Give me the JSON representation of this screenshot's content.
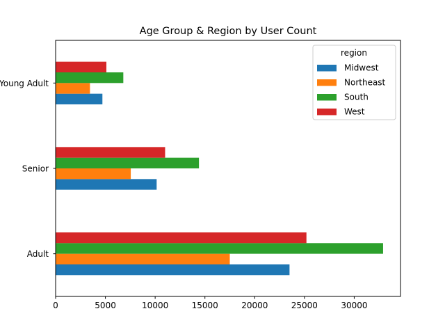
{
  "chart_data": {
    "type": "bar",
    "orientation": "horizontal",
    "title": "Age Group & Region by User Count",
    "xlabel": "",
    "ylabel": "",
    "xlim": [
      0,
      34650
    ],
    "xticks": [
      0,
      5000,
      10000,
      15000,
      20000,
      25000,
      30000
    ],
    "xtick_labels": [
      "0",
      "5000",
      "10000",
      "15000",
      "20000",
      "25000",
      "30000"
    ],
    "categories": [
      "Adult",
      "Senior",
      "Young Adult"
    ],
    "grid": false,
    "legend": {
      "title": "region",
      "placement": "top-right"
    },
    "series": [
      {
        "name": "Midwest",
        "color": "#1f77b4",
        "values": [
          23500,
          10150,
          4700
        ]
      },
      {
        "name": "Northeast",
        "color": "#ff7f0e",
        "values": [
          17500,
          7550,
          3450
        ]
      },
      {
        "name": "South",
        "color": "#2ca02c",
        "values": [
          32900,
          14400,
          6800
        ]
      },
      {
        "name": "West",
        "color": "#d62728",
        "values": [
          25200,
          11000,
          5100
        ]
      }
    ]
  }
}
